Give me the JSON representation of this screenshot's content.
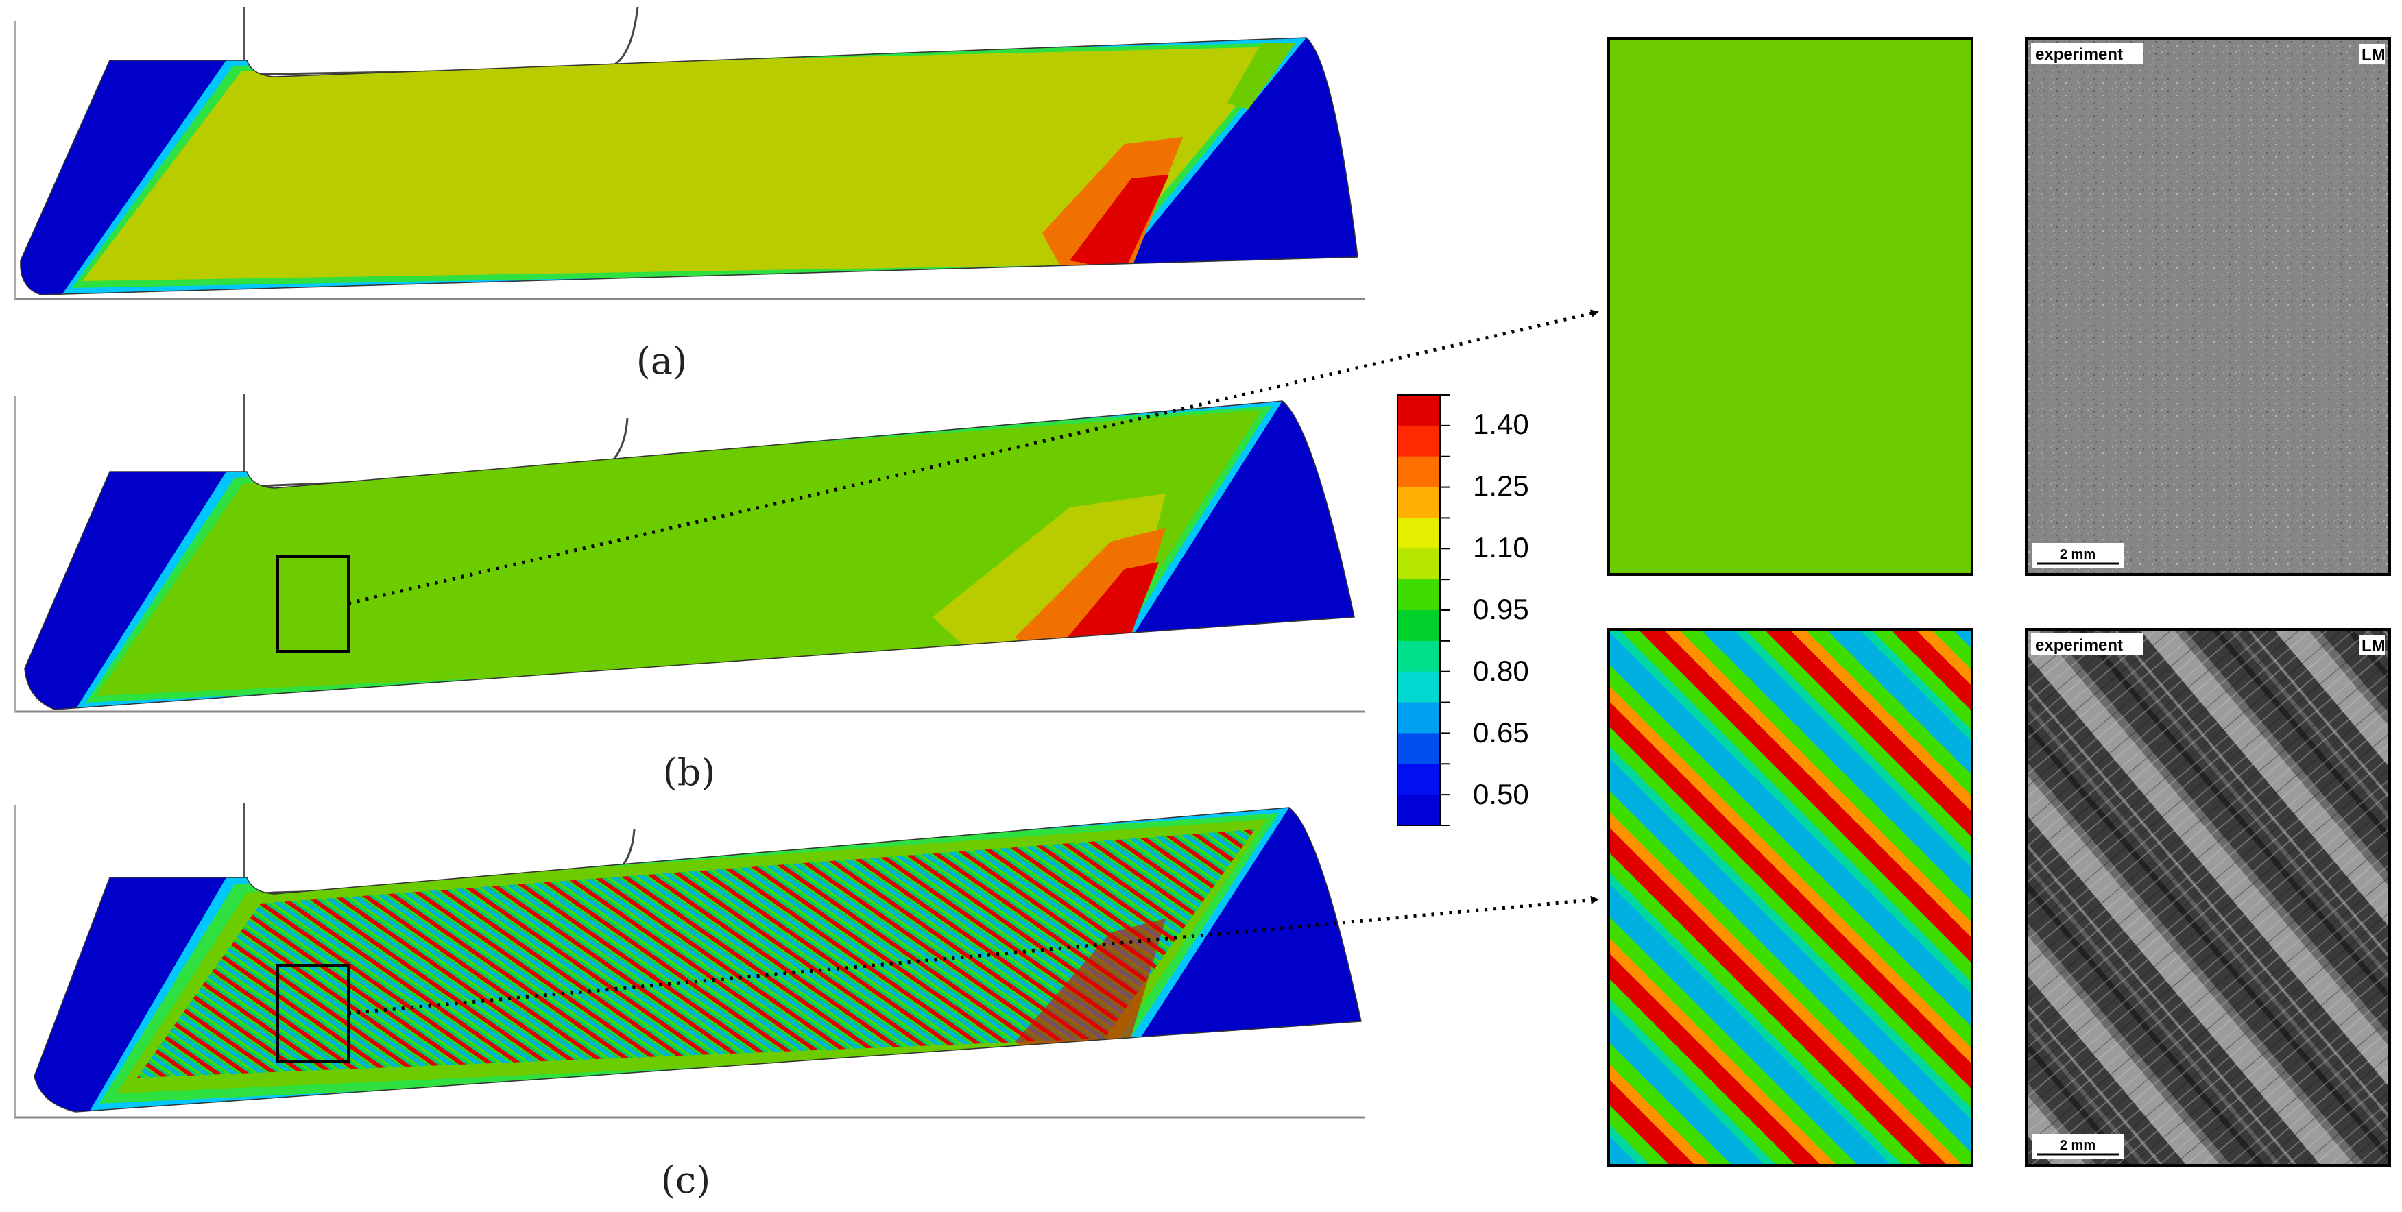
{
  "captions": {
    "a": "(a)",
    "b": "(b)",
    "c": "(c)"
  },
  "colorbar": {
    "tick_labels": [
      "1.40",
      "1.25",
      "1.10",
      "0.95",
      "0.80",
      "0.65",
      "0.50"
    ],
    "band_colors_top_to_bottom": [
      "#e00000",
      "#ff2a00",
      "#ff7000",
      "#ffb000",
      "#e4ef00",
      "#b4e600",
      "#3fdc00",
      "#00d12a",
      "#00e08c",
      "#00d8d0",
      "#00a0f0",
      "#0050f0",
      "#0010f0",
      "#0000d8"
    ]
  },
  "simulation_colors": {
    "blue_region": "#0000c8",
    "panel_a_fill": "#b8cc00",
    "panel_b_fill": "#6ccc00",
    "hot_orange": "#f07000",
    "hot_red": "#e00000",
    "edge_cyan": "#00c8ff",
    "edge_green": "#2ee040"
  },
  "micrographs": {
    "top": {
      "label": "experiment",
      "corner": "LM",
      "scale": "2 mm"
    },
    "bottom": {
      "label": "experiment",
      "corner": "LM",
      "scale": "2 mm"
    }
  },
  "zoom": {
    "top_fill": "#6ccc00",
    "stripe_colors": [
      "#e00000",
      "#3fdc00",
      "#00b0e0",
      "#3fdc00"
    ]
  }
}
